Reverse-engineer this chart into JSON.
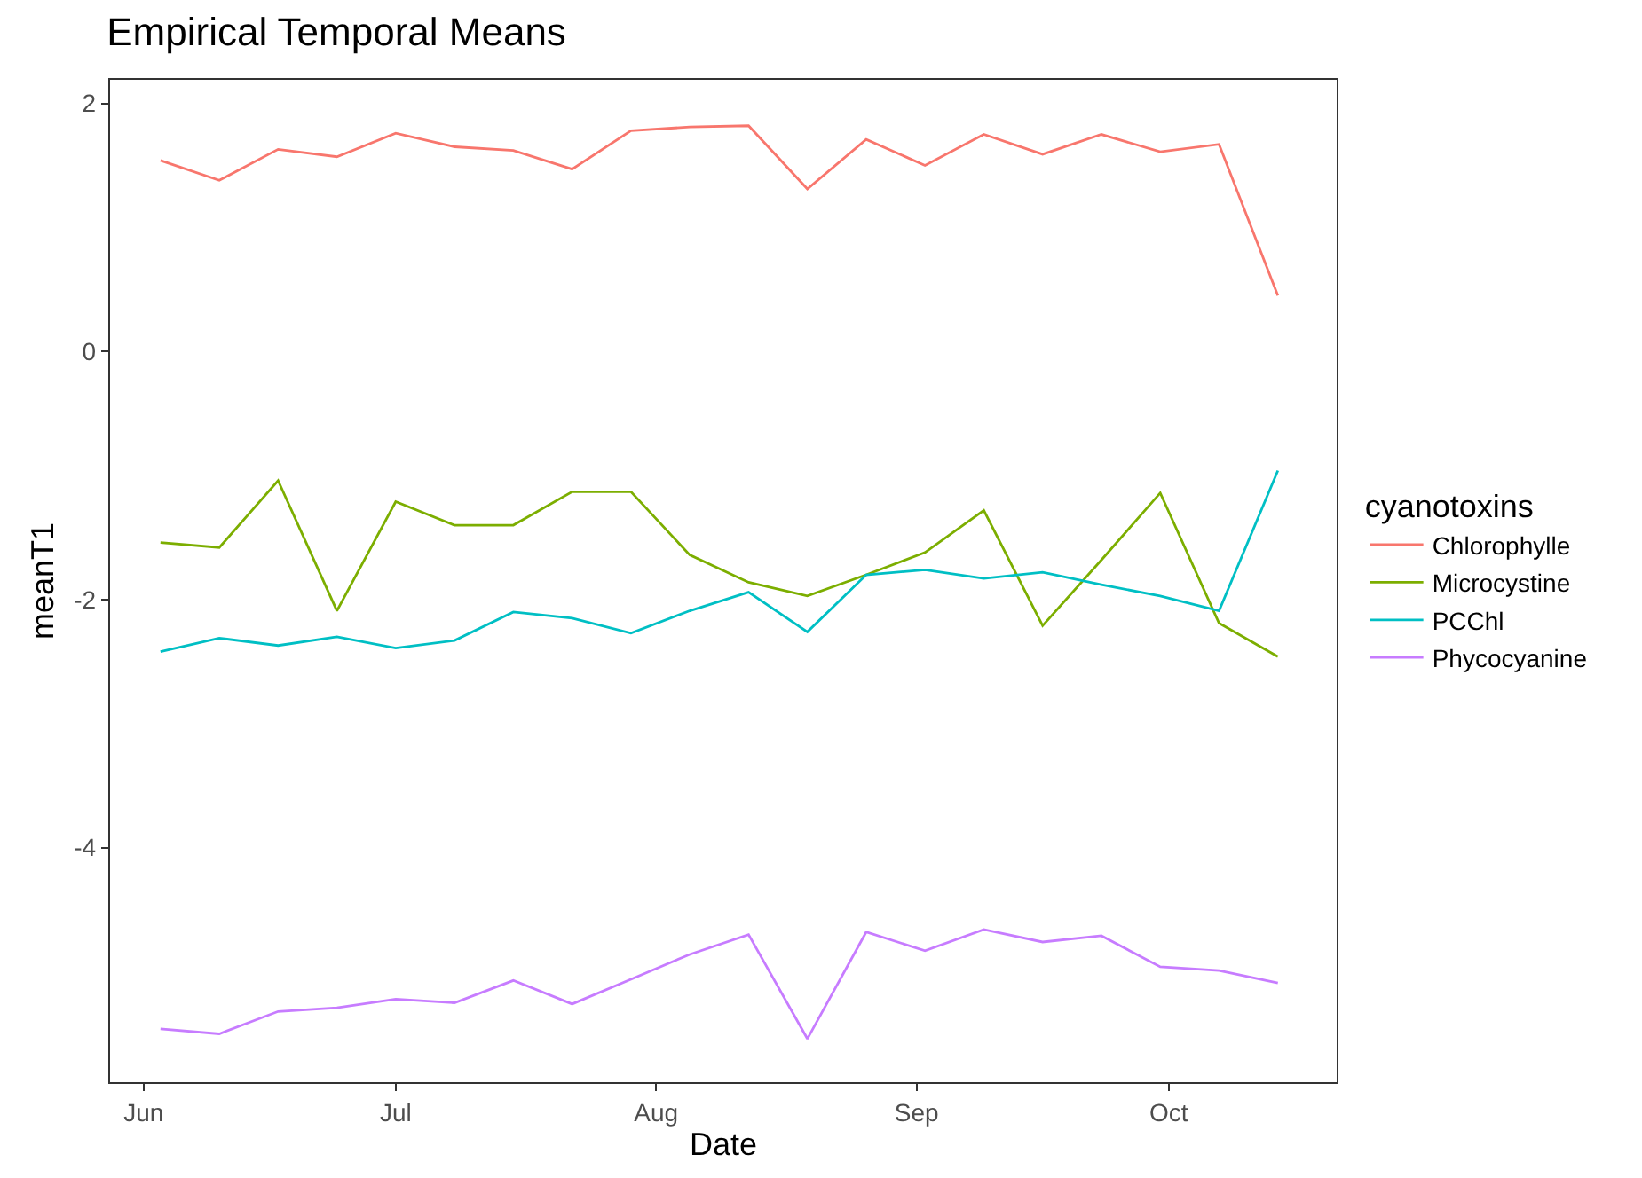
{
  "chart_data": {
    "type": "line",
    "title": "Empirical Temporal Means",
    "xlabel": "Date",
    "ylabel": "meanT1",
    "legend_title": "cyanotoxins",
    "x": [
      "--06-03",
      "--06-10",
      "--06-17",
      "--06-24",
      "--07-01",
      "--07-08",
      "--07-15",
      "--07-22",
      "--07-29",
      "--08-05",
      "--08-12",
      "--08-19",
      "--08-26",
      "--09-02",
      "--09-09",
      "--09-16",
      "--09-23",
      "--09-30",
      "--10-07",
      "--10-14"
    ],
    "series": [
      {
        "name": "Chlorophylle",
        "color": "#f8766d",
        "values": [
          1.54,
          1.38,
          1.63,
          1.57,
          1.76,
          1.65,
          1.62,
          1.47,
          1.78,
          1.81,
          1.82,
          1.31,
          1.71,
          1.5,
          1.75,
          1.59,
          1.75,
          1.61,
          1.67,
          0.45
        ]
      },
      {
        "name": "Microcystine",
        "color": "#7cae00",
        "values": [
          -1.54,
          -1.58,
          -1.04,
          -2.09,
          -1.21,
          -1.4,
          -1.4,
          -1.13,
          -1.13,
          -1.64,
          -1.86,
          -1.97,
          -1.8,
          -1.62,
          -1.28,
          -2.21,
          -1.68,
          -1.14,
          -2.19,
          -2.46
        ]
      },
      {
        "name": "PCChl",
        "color": "#00bfc4",
        "values": [
          -2.42,
          -2.31,
          -2.37,
          -2.3,
          -2.39,
          -2.33,
          -2.1,
          -2.15,
          -2.27,
          -2.09,
          -1.94,
          -2.26,
          -1.8,
          -1.76,
          -1.83,
          -1.78,
          -1.88,
          -1.97,
          -2.09,
          -0.96
        ]
      },
      {
        "name": "Phycocyanine",
        "color": "#c77cff",
        "values": [
          -5.46,
          -5.5,
          -5.32,
          -5.29,
          -5.22,
          -5.25,
          -5.07,
          -5.26,
          -5.06,
          -4.86,
          -4.7,
          -5.54,
          -4.68,
          -4.83,
          -4.66,
          -4.76,
          -4.71,
          -4.96,
          -4.99,
          -5.09
        ]
      }
    ],
    "xlim": [
      "--05-28",
      "--10-21"
    ],
    "xticks": [
      {
        "value": "--06-01",
        "label": "Jun"
      },
      {
        "value": "--07-01",
        "label": "Jul"
      },
      {
        "value": "--08-01",
        "label": "Aug"
      },
      {
        "value": "--09-01",
        "label": "Sep"
      },
      {
        "value": "--10-01",
        "label": "Oct"
      }
    ],
    "ylim": [
      -5.89,
      2.19
    ],
    "yticks": [
      -4,
      -2,
      0,
      2
    ],
    "grid": false,
    "legend": "right",
    "marker": "none",
    "line_style": "solid"
  }
}
